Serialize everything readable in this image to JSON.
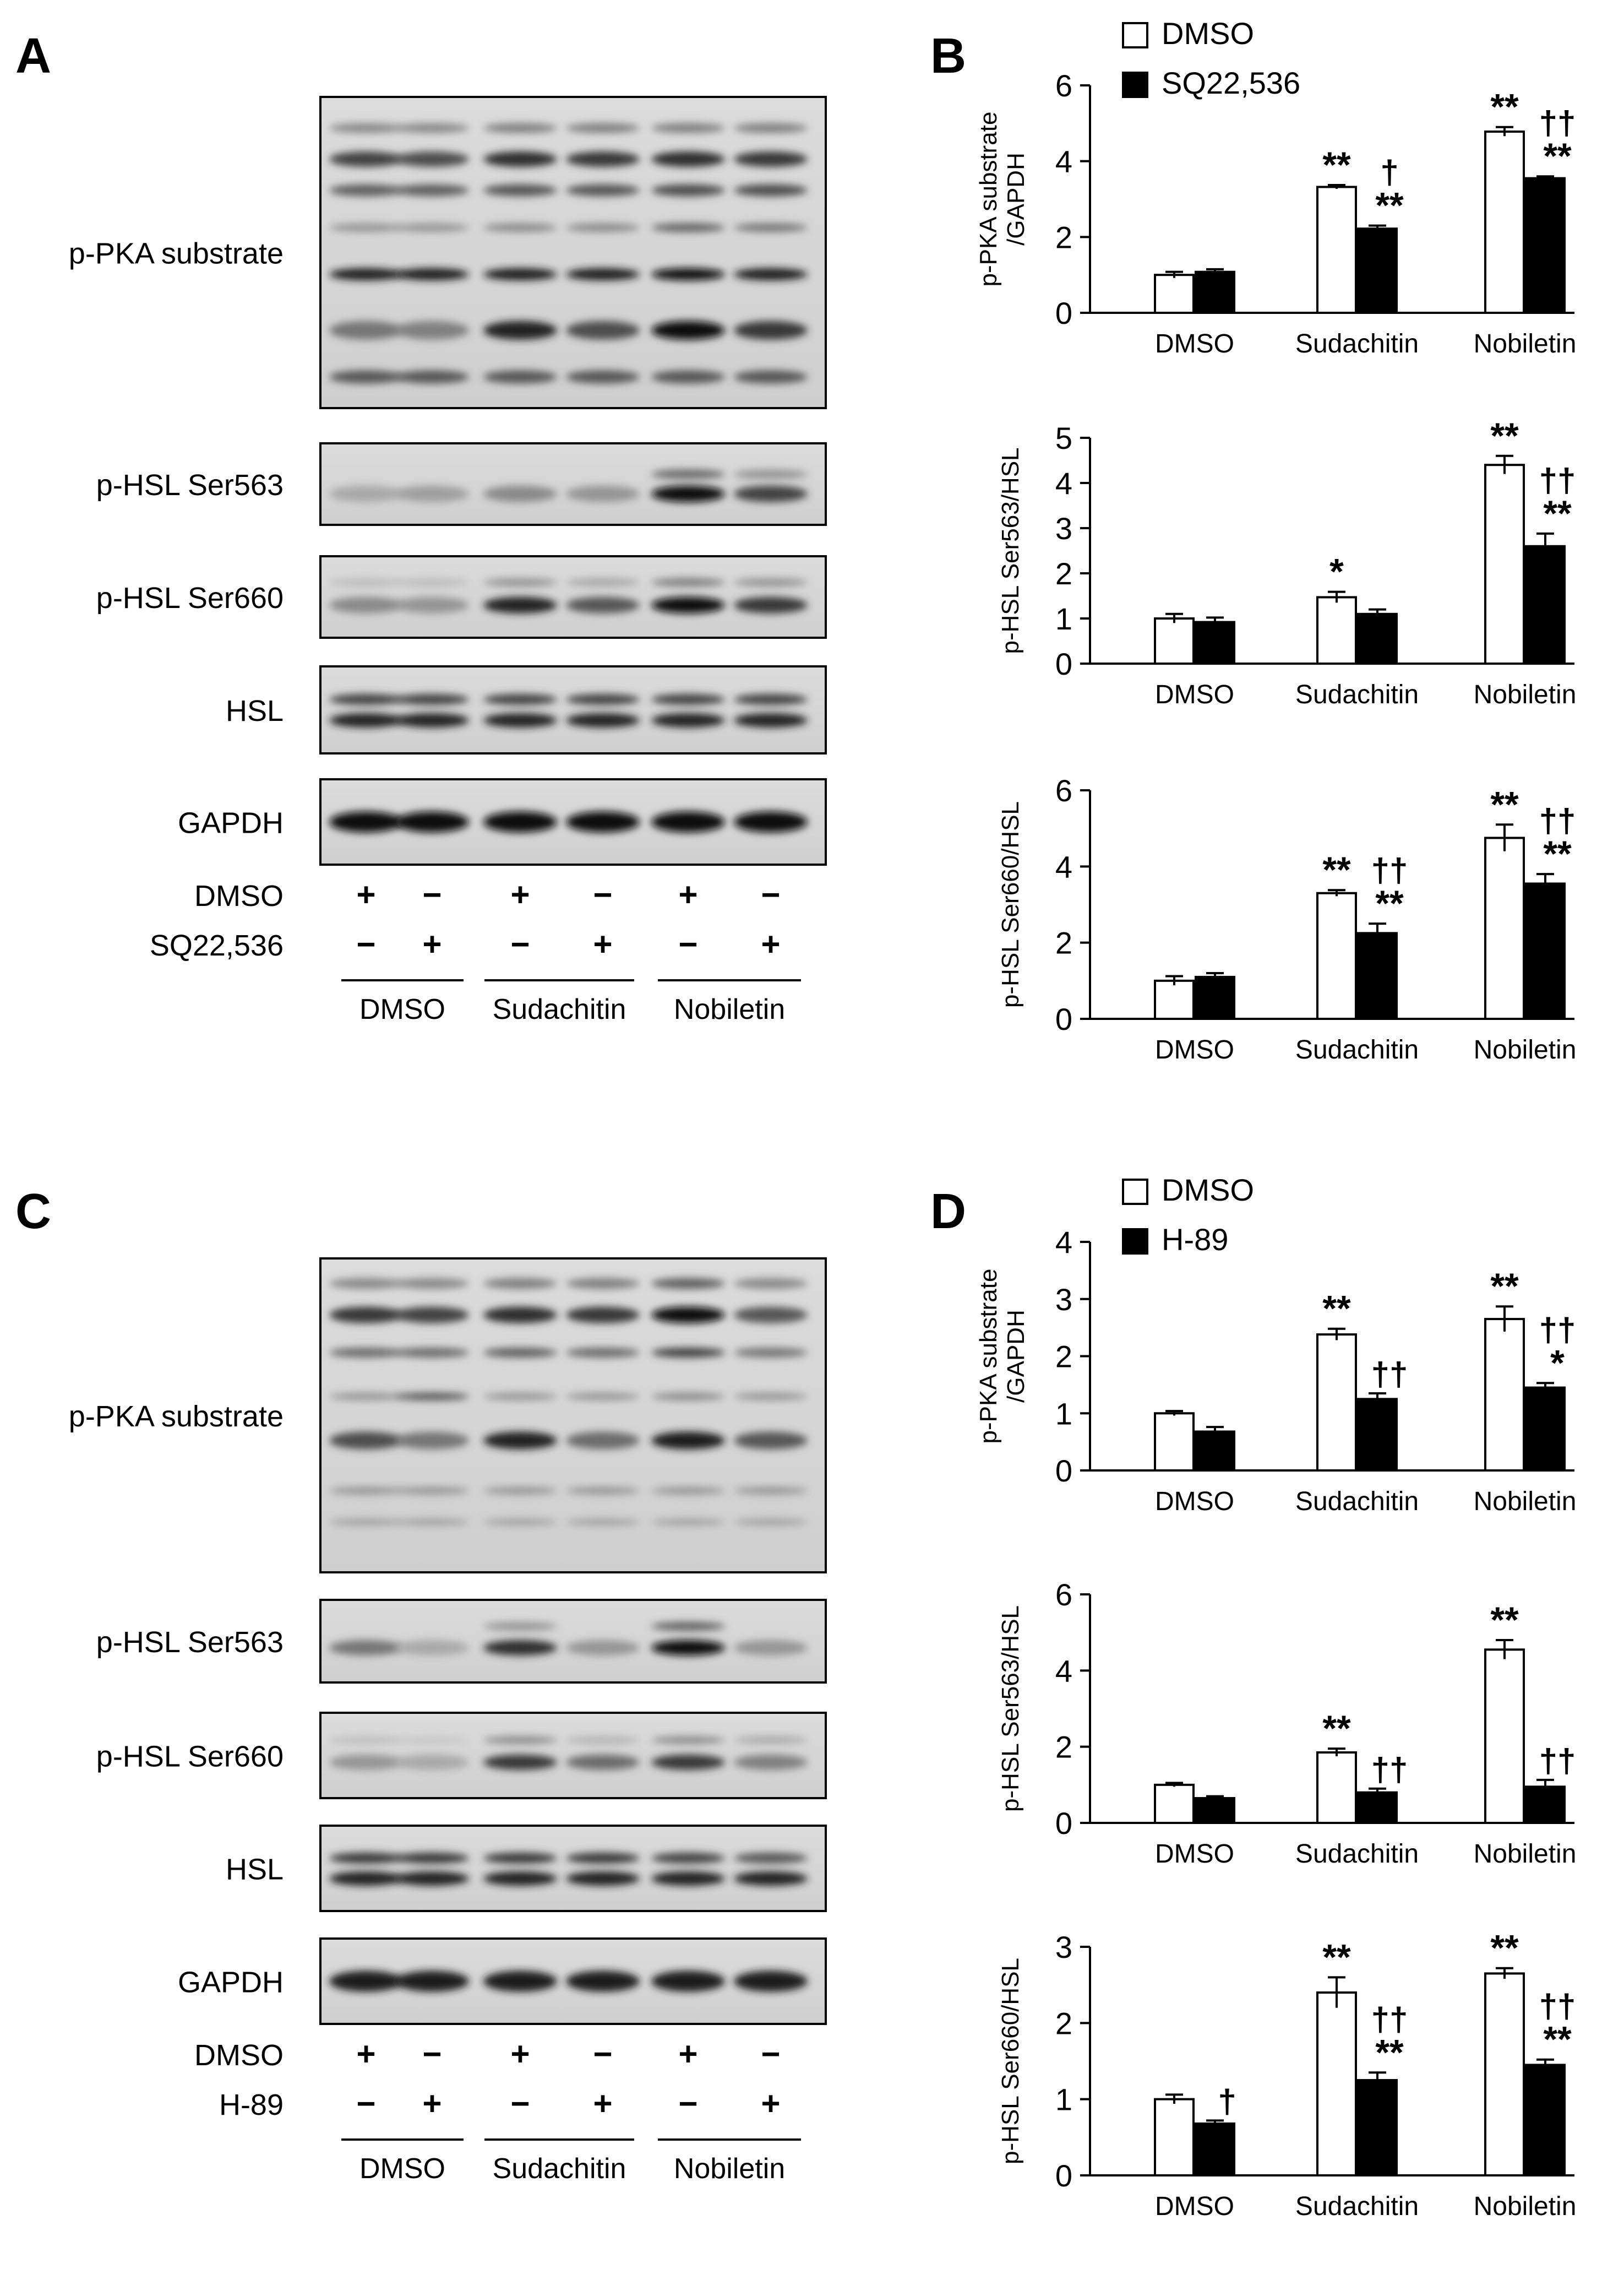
{
  "panels": {
    "A": {
      "letter": "A",
      "blots": [
        {
          "label": "p-PKA substrate"
        },
        {
          "label": "p-HSL Ser563"
        },
        {
          "label": "p-HSL Ser660"
        },
        {
          "label": "HSL"
        },
        {
          "label": "GAPDH"
        }
      ],
      "treatments": [
        {
          "label": "DMSO",
          "signs": [
            "+",
            "−",
            "+",
            "−",
            "+",
            "−"
          ]
        },
        {
          "label": "SQ22,536",
          "signs": [
            "−",
            "+",
            "−",
            "+",
            "−",
            "+"
          ]
        }
      ],
      "groups": [
        "DMSO",
        "Sudachitin",
        "Nobiletin"
      ]
    },
    "B": {
      "letter": "B"
    },
    "C": {
      "letter": "C",
      "blots": [
        {
          "label": "p-PKA substrate"
        },
        {
          "label": "p-HSL Ser563"
        },
        {
          "label": "p-HSL Ser660"
        },
        {
          "label": "HSL"
        },
        {
          "label": "GAPDH"
        }
      ],
      "treatments": [
        {
          "label": "DMSO",
          "signs": [
            "+",
            "−",
            "+",
            "−",
            "+",
            "−"
          ]
        },
        {
          "label": "H-89",
          "signs": [
            "−",
            "+",
            "−",
            "+",
            "−",
            "+"
          ]
        }
      ],
      "groups": [
        "DMSO",
        "Sudachitin",
        "Nobiletin"
      ]
    },
    "D": {
      "letter": "D"
    }
  },
  "colors": {
    "open_bar": "#ffffff",
    "filled_bar": "#000000",
    "axis": "#000000"
  },
  "chart_data": [
    {
      "panel": "B",
      "type": "bar",
      "categories": [
        "DMSO",
        "Sudachitin",
        "Nobiletin"
      ],
      "ylabel": "p-PKA substrate\n/GAPDH",
      "ylim": [
        0,
        6
      ],
      "yticks": [
        "0",
        "2",
        "4",
        "6"
      ],
      "legend": [
        "DMSO",
        "SQ22,536"
      ],
      "series": [
        {
          "name": "DMSO",
          "values": [
            1.0,
            3.32,
            4.78
          ],
          "errors": [
            0.08,
            0.05,
            0.12
          ]
        },
        {
          "name": "SQ22,536",
          "values": [
            1.08,
            2.22,
            3.55
          ],
          "errors": [
            0.07,
            0.08,
            0.05
          ]
        }
      ],
      "annotations": [
        [
          "",
          "**",
          "**"
        ],
        [
          "",
          "†\n**",
          "††\n**"
        ]
      ]
    },
    {
      "panel": "B",
      "type": "bar",
      "categories": [
        "DMSO",
        "Sudachitin",
        "Nobiletin"
      ],
      "ylabel": "p-HSL  Ser563/HSL",
      "ylim": [
        0,
        5
      ],
      "yticks": [
        "0",
        "1",
        "2",
        "3",
        "4",
        "5"
      ],
      "series": [
        {
          "name": "DMSO",
          "values": [
            1.0,
            1.47,
            4.4
          ],
          "errors": [
            0.1,
            0.12,
            0.2
          ]
        },
        {
          "name": "SQ22,536",
          "values": [
            0.92,
            1.1,
            2.6
          ],
          "errors": [
            0.1,
            0.1,
            0.28
          ]
        }
      ],
      "annotations": [
        [
          "",
          "*",
          "**"
        ],
        [
          "",
          "",
          "††\n**"
        ]
      ]
    },
    {
      "panel": "B",
      "type": "bar",
      "categories": [
        "DMSO",
        "Sudachitin",
        "Nobiletin"
      ],
      "ylabel": "p-HSL  Ser660/HSL",
      "ylim": [
        0,
        6
      ],
      "yticks": [
        "0",
        "2",
        "4",
        "6"
      ],
      "series": [
        {
          "name": "DMSO",
          "values": [
            1.0,
            3.3,
            4.75
          ],
          "errors": [
            0.12,
            0.08,
            0.35
          ]
        },
        {
          "name": "SQ22,536",
          "values": [
            1.1,
            2.25,
            3.55
          ],
          "errors": [
            0.1,
            0.25,
            0.25
          ]
        }
      ],
      "annotations": [
        [
          "",
          "**",
          "**"
        ],
        [
          "",
          "††\n**",
          "††\n**"
        ]
      ]
    },
    {
      "panel": "D",
      "type": "bar",
      "categories": [
        "DMSO",
        "Sudachitin",
        "Nobiletin"
      ],
      "ylabel": "p-PKA substrate\n/GAPDH",
      "ylim": [
        0,
        4
      ],
      "yticks": [
        "0",
        "1",
        "2",
        "3",
        "4"
      ],
      "legend": [
        "DMSO",
        "H-89"
      ],
      "series": [
        {
          "name": "DMSO",
          "values": [
            1.0,
            2.38,
            2.65
          ],
          "errors": [
            0.04,
            0.1,
            0.22
          ]
        },
        {
          "name": "H-89",
          "values": [
            0.68,
            1.25,
            1.45
          ],
          "errors": [
            0.08,
            0.1,
            0.08
          ]
        }
      ],
      "annotations": [
        [
          "",
          "**",
          "**"
        ],
        [
          "",
          "††",
          "††\n*"
        ]
      ]
    },
    {
      "panel": "D",
      "type": "bar",
      "categories": [
        "DMSO",
        "Sudachitin",
        "Nobiletin"
      ],
      "ylabel": "p-HSL  Ser563/HSL",
      "ylim": [
        0,
        6
      ],
      "yticks": [
        "0",
        "2",
        "4",
        "6"
      ],
      "series": [
        {
          "name": "DMSO",
          "values": [
            1.0,
            1.85,
            4.55
          ],
          "errors": [
            0.05,
            0.1,
            0.25
          ]
        },
        {
          "name": "H-89",
          "values": [
            0.65,
            0.8,
            0.95
          ],
          "errors": [
            0.05,
            0.1,
            0.18
          ]
        }
      ],
      "annotations": [
        [
          "",
          "**",
          "**"
        ],
        [
          "",
          "††",
          "††"
        ]
      ]
    },
    {
      "panel": "D",
      "type": "bar",
      "categories": [
        "DMSO",
        "Sudachitin",
        "Nobiletin"
      ],
      "ylabel": "p-HSL  Ser660/HSL",
      "ylim": [
        0,
        3
      ],
      "yticks": [
        "0",
        "1",
        "2",
        "3"
      ],
      "series": [
        {
          "name": "DMSO",
          "values": [
            1.0,
            2.4,
            2.65
          ],
          "errors": [
            0.06,
            0.2,
            0.07
          ]
        },
        {
          "name": "H-89",
          "values": [
            0.68,
            1.25,
            1.45
          ],
          "errors": [
            0.04,
            0.1,
            0.07
          ]
        }
      ],
      "annotations": [
        [
          "",
          "**",
          "**"
        ],
        [
          "†",
          "††\n**",
          "††\n**"
        ]
      ]
    }
  ]
}
